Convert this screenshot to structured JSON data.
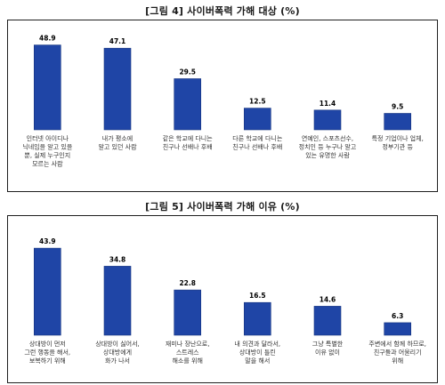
{
  "chart_data": [
    {
      "type": "bar",
      "title": "[그림 4] 사이버폭력 가해 대상 (%)",
      "categories": [
        [
          "인터넷 아이디나",
          "닉네임을 알고 있을",
          "뿐, 실제 누구인지",
          "모르는 사람"
        ],
        [
          "내가 평소에",
          "알고 있던 사람"
        ],
        [
          "같은 학교에 다니는",
          "친구나 선배나 후배"
        ],
        [
          "다른 학교에 다니는",
          "친구나 선배나 후배"
        ],
        [
          "연예인, 스포츠선수,",
          "정치인 등 누구나 알고",
          "있는 유명한 사람"
        ],
        [
          "특정 기업이나 업체,",
          "정부기관 등"
        ]
      ],
      "values": [
        48.9,
        47.1,
        29.5,
        12.5,
        11.4,
        9.5
      ],
      "value_labels": [
        "48.9",
        "47.1",
        "29.5",
        "12.5",
        "11.4",
        "9.5"
      ],
      "ylim": [
        0,
        60
      ]
    },
    {
      "type": "bar",
      "title": "[그림 5] 사이버폭력 가해 이유 (%)",
      "categories": [
        [
          "상대방이 먼저",
          "그런 행동을 해서,",
          "보복하기 위해"
        ],
        [
          "상대방이 싫어서,",
          "상대방에게",
          "화가 나서"
        ],
        [
          "재미나 장난으로,",
          "스트레스",
          "해소를 위해"
        ],
        [
          "내 의견과 달라서,",
          "상대방이 틀린",
          "말을 해서"
        ],
        [
          "그냥 특별한",
          "이유 없이"
        ],
        [
          "주변에서 함께 하므로,",
          "친구들과 어울리기",
          "위해"
        ]
      ],
      "values": [
        43.9,
        34.8,
        22.8,
        16.5,
        14.6,
        6.3
      ],
      "value_labels": [
        "43.9",
        "34.8",
        "22.8",
        "16.5",
        "14.6",
        "6.3"
      ],
      "ylim": [
        0,
        52
      ]
    }
  ],
  "colors": {
    "bar": "#1f45a6",
    "bar_shade": "#16347f"
  }
}
